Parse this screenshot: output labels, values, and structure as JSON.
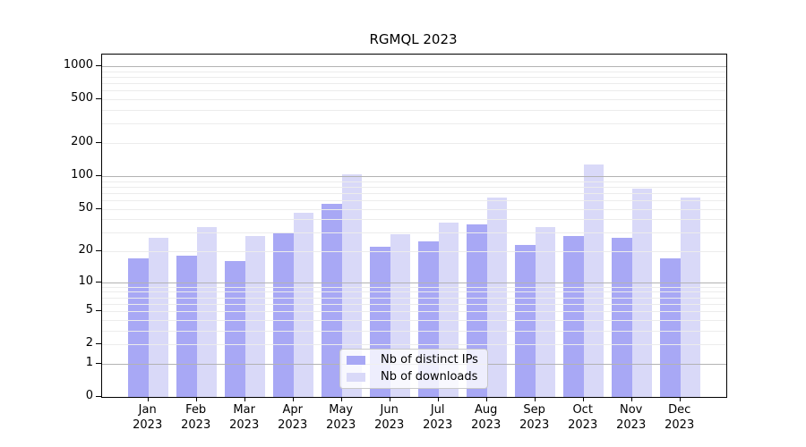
{
  "title": "RGMQL 2023",
  "colors": {
    "ips": "#a8a8f5",
    "downloads": "#d9d9f8",
    "grid_major": "#b3b3b3",
    "grid_minor": "#ececec",
    "spine": "#000000",
    "legend_border": "#c9c9c9"
  },
  "chart_data": {
    "type": "bar",
    "title": "RGMQL 2023",
    "categories": [
      "Jan 2023",
      "Feb 2023",
      "Mar 2023",
      "Apr 2023",
      "May 2023",
      "Jun 2023",
      "Jul 2023",
      "Aug 2023",
      "Sep 2023",
      "Oct 2023",
      "Nov 2023",
      "Dec 2023"
    ],
    "series": [
      {
        "name": "Nb of distinct IPs",
        "values": [
          17,
          18,
          16,
          30,
          55,
          22,
          25,
          36,
          23,
          28,
          27,
          17
        ]
      },
      {
        "name": "Nb of downloads",
        "values": [
          27,
          34,
          28,
          46,
          103,
          29,
          37,
          63,
          34,
          128,
          77,
          63
        ]
      }
    ],
    "xlabel": "",
    "ylabel": "",
    "yscale": "log1p",
    "yticks": [
      0,
      1,
      2,
      5,
      10,
      20,
      50,
      100,
      200,
      500,
      1000
    ],
    "ylim": [
      0,
      1300
    ],
    "grid": true,
    "legend_position": "lower center"
  }
}
